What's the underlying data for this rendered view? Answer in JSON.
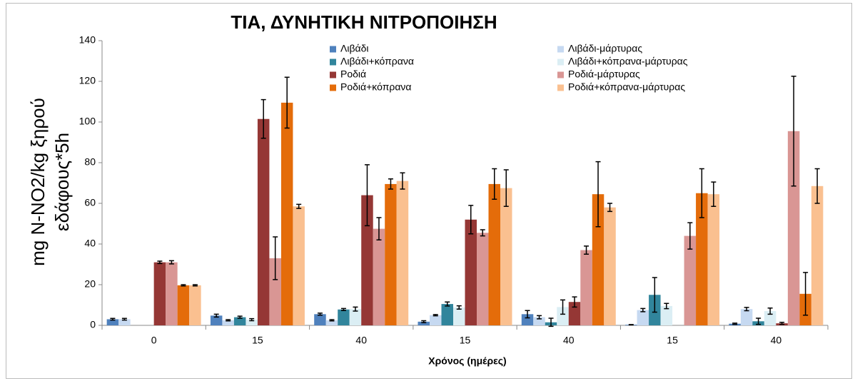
{
  "chart_data": {
    "type": "bar",
    "title": "ΤΙΑ,  ΔΥΝΗΤΙΚΗ ΝΙΤΡΟΠΟΙΗΣΗ",
    "xlabel": "Χρόνος (ημέρες)",
    "ylabel": [
      "mg N-NO2/kg ξηρού",
      "εδάφους*5h"
    ],
    "categories": [
      "0",
      "15",
      "40",
      "15",
      "40",
      "15",
      "40"
    ],
    "ylim": [
      0,
      140
    ],
    "yticks": [
      0,
      20,
      40,
      60,
      80,
      100,
      120,
      140
    ],
    "series": [
      {
        "name": "Λιβάδι",
        "color": "#4f81bd",
        "values": [
          3,
          4.8,
          5.5,
          1.8,
          5.5,
          0.3,
          0.8
        ],
        "errors": [
          0.4,
          0.7,
          0.5,
          0.5,
          1.8,
          0.1,
          0.3
        ]
      },
      {
        "name": "Λιβάδι-μάρτυρας",
        "color": "#c6d9f1",
        "values": [
          3,
          2.5,
          2.5,
          5,
          4,
          7.5,
          8
        ],
        "errors": [
          0.4,
          0.3,
          0.3,
          0.3,
          0.8,
          0.8,
          0.8
        ]
      },
      {
        "name": "Λιβάδι+κόπρανα",
        "color": "#31859c",
        "values": [
          0,
          4,
          7.8,
          10.5,
          1.5,
          15,
          2
        ],
        "errors": [
          0,
          0.5,
          0.5,
          1,
          2,
          8.5,
          1.5
        ]
      },
      {
        "name": "Λιβάδι+κόπρανα-μάρτυρας",
        "color": "#dbeef4",
        "values": [
          0,
          2.8,
          8,
          8.8,
          9,
          9.5,
          7
        ],
        "errors": [
          0,
          0.5,
          1,
          0.8,
          3.5,
          1.3,
          1.5
        ]
      },
      {
        "name": "Ροδιά",
        "color": "#953735",
        "values": [
          31,
          101.5,
          64,
          52,
          11.5,
          0,
          1
        ],
        "errors": [
          0.6,
          9.5,
          15,
          7,
          2.5,
          0,
          0.5
        ]
      },
      {
        "name": "Ροδιά-μάρτυρας",
        "color": "#d99694",
        "values": [
          31,
          33,
          47.5,
          45.5,
          37,
          44,
          95.5
        ],
        "errors": [
          0.8,
          10.5,
          5.5,
          1.5,
          2,
          6.5,
          27
        ]
      },
      {
        "name": "Ροδιά+κόπρανα",
        "color": "#e46c0a",
        "values": [
          19.7,
          109.5,
          69.5,
          69.5,
          64.5,
          65,
          15.5
        ],
        "errors": [
          0.3,
          12.5,
          2.5,
          7.5,
          16,
          12,
          10.5
        ]
      },
      {
        "name": "Ροδιά+κόπρανα-μάρτυρας",
        "color": "#fac090",
        "values": [
          19.7,
          58.5,
          71,
          67.5,
          58,
          64.5,
          68.5
        ],
        "errors": [
          0.3,
          1,
          4,
          9,
          2,
          6,
          8.5
        ]
      }
    ]
  }
}
